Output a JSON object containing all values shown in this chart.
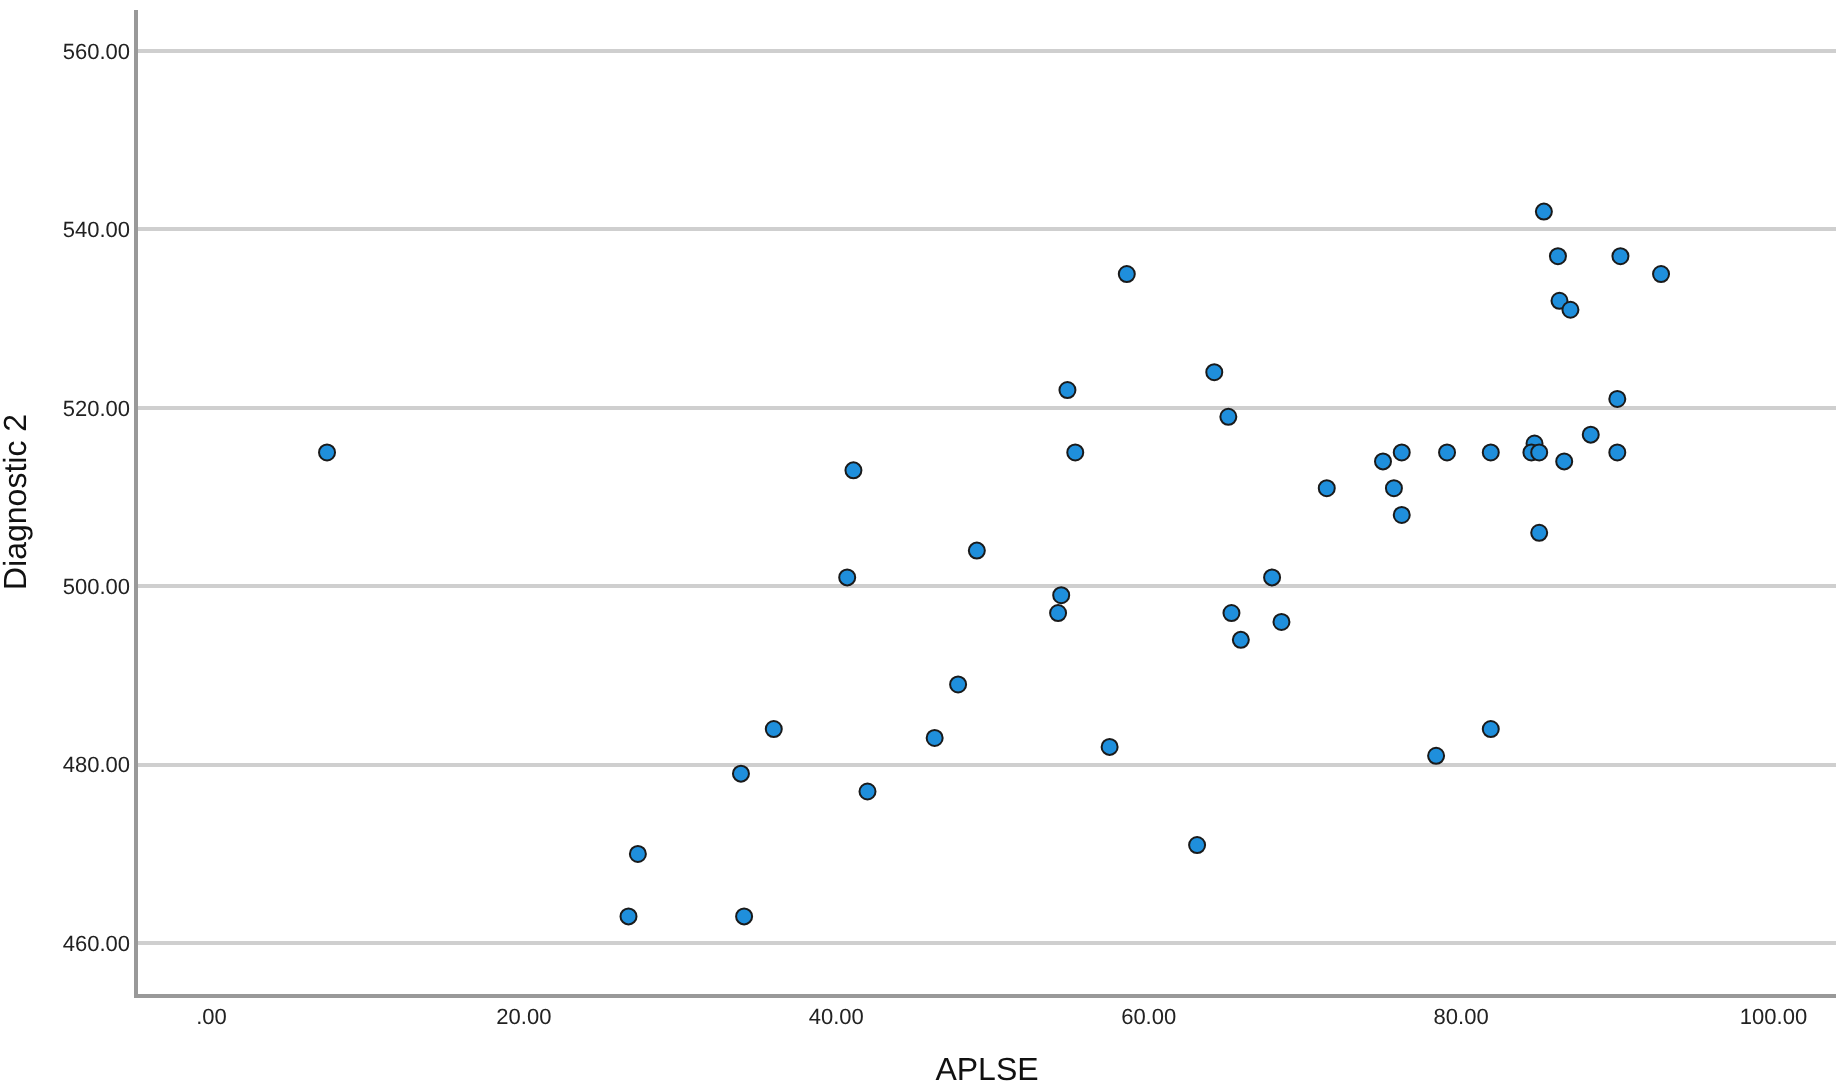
{
  "chart_data": {
    "type": "scatter",
    "xlabel": "APLSE",
    "ylabel": "Diagnostic 2",
    "x": [
      7.4,
      26.7,
      27.3,
      33.9,
      34.1,
      36.0,
      40.7,
      41.1,
      42.0,
      46.3,
      47.8,
      49.0,
      54.2,
      54.4,
      54.8,
      55.3,
      57.5,
      58.6,
      63.1,
      64.2,
      65.1,
      65.3,
      65.9,
      67.9,
      68.5,
      71.4,
      75.0,
      75.7,
      76.2,
      76.2,
      79.1,
      78.4,
      81.9,
      81.9,
      84.7,
      84.5,
      85.0,
      85.0,
      85.3,
      86.2,
      86.3,
      87.0,
      86.6,
      88.3,
      90.0,
      90.0,
      90.2,
      92.8
    ],
    "series": [
      {
        "color": "#1f8fdc",
        "values": [
          515,
          463,
          470,
          479,
          463,
          484,
          501,
          513,
          477,
          483,
          489,
          504,
          497,
          499,
          522,
          515,
          482,
          535,
          471,
          524,
          519,
          497,
          494,
          501,
          496,
          511,
          514,
          511,
          515,
          508,
          515,
          481,
          515,
          484,
          516,
          515,
          515,
          506,
          542,
          537,
          532,
          531,
          514,
          517,
          521,
          515,
          537,
          535
        ]
      }
    ],
    "marker": "circle",
    "grid": "y",
    "xlim": [
      -4.7,
      104
    ],
    "ylim": [
      454.3,
      564.6
    ],
    "xticks": [
      {
        "value": 0,
        "label": ".00"
      },
      {
        "value": 20,
        "label": "20.00"
      },
      {
        "value": 40,
        "label": "40.00"
      },
      {
        "value": 60,
        "label": "60.00"
      },
      {
        "value": 80,
        "label": "80.00"
      },
      {
        "value": 100,
        "label": "100.00"
      }
    ],
    "yticks": [
      {
        "value": 460,
        "label": "460.00"
      },
      {
        "value": 480,
        "label": "480.00"
      },
      {
        "value": 500,
        "label": "500.00"
      },
      {
        "value": 520,
        "label": "520.00"
      },
      {
        "value": 540,
        "label": "540.00"
      },
      {
        "value": 560,
        "label": "560.00"
      }
    ]
  }
}
